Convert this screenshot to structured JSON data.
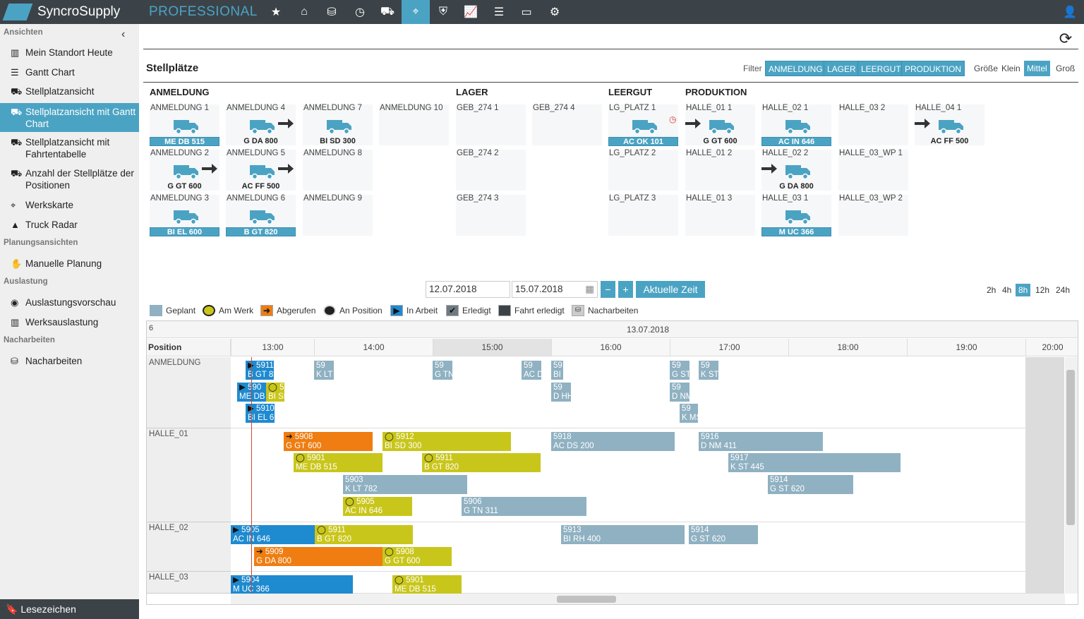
{
  "app": {
    "brand": "SyncroSupply",
    "edition": "PROFESSIONAL"
  },
  "nav_icons": [
    "star-icon",
    "home-icon",
    "network-icon",
    "clock-icon",
    "truck-icon",
    "map-marker-icon",
    "shield-icon",
    "chart-line-icon",
    "database-icon",
    "monitor-icon",
    "gears-icon"
  ],
  "sidebar": {
    "section_views": "Ansichten",
    "items": [
      {
        "label": "Mein Standort Heute",
        "icon": "bar-chart-icon"
      },
      {
        "label": "Gantt Chart",
        "icon": "tasks-icon"
      },
      {
        "label": "Stellplatzansicht",
        "icon": "truck-icon"
      },
      {
        "label": "Stellplatzansicht mit Gantt Chart",
        "icon": "truck-icon"
      },
      {
        "label": "Stellplatzansicht mit Fahrtentabelle",
        "icon": "truck-icon"
      },
      {
        "label": "Anzahl der Stellplätze der Positionen",
        "icon": "truck-icon"
      },
      {
        "label": "Werkskarte",
        "icon": "map-marker-icon"
      },
      {
        "label": "Truck Radar",
        "icon": "road-icon"
      }
    ],
    "section_planning": "Planungsansichten",
    "planning_items": [
      {
        "label": "Manuelle Planung",
        "icon": "hand-icon"
      }
    ],
    "section_load": "Auslastung",
    "load_items": [
      {
        "label": "Auslastungsvorschau",
        "icon": "eye-icon"
      },
      {
        "label": "Werksauslastung",
        "icon": "bar-chart-icon"
      }
    ],
    "section_rework": "Nacharbeiten",
    "rework_items": [
      {
        "label": "Nacharbeiten",
        "icon": "cubes-icon"
      }
    ],
    "bookmark": "Lesezeichen"
  },
  "page": {
    "title": "Stellplätze"
  },
  "toolbar": {
    "filter_label": "Filter",
    "filters": [
      "ANMELDUNG",
      "LAGER",
      "LEERGUT",
      "PRODUKTION"
    ],
    "size_label": "Größe",
    "sizes": [
      "Klein",
      "Mittel",
      "Groß"
    ],
    "size_selected": "Mittel"
  },
  "columns": {
    "anmeldung": "ANMELDUNG",
    "lager": "LAGER",
    "leergut": "LEERGUT",
    "produktion": "PRODUKTION"
  },
  "slots": {
    "anm1": {
      "name": "ANMELDUNG 1",
      "plate": "ME DB 515"
    },
    "anm2": {
      "name": "ANMELDUNG 2",
      "plate": "G GT 600"
    },
    "anm3": {
      "name": "ANMELDUNG 3",
      "plate": "BI EL 600"
    },
    "anm4": {
      "name": "ANMELDUNG 4",
      "plate": "G DA 800"
    },
    "anm5": {
      "name": "ANMELDUNG 5",
      "plate": "AC FF 500"
    },
    "anm6": {
      "name": "ANMELDUNG 6",
      "plate": "B GT 820"
    },
    "anm7": {
      "name": "ANMELDUNG 7",
      "plate": "BI SD 300"
    },
    "anm8": {
      "name": "ANMELDUNG 8"
    },
    "anm9": {
      "name": "ANMELDUNG 9"
    },
    "anm10": {
      "name": "ANMELDUNG 10"
    },
    "geb1": {
      "name": "GEB_274 1"
    },
    "geb2": {
      "name": "GEB_274 2"
    },
    "geb3": {
      "name": "GEB_274 3"
    },
    "geb4": {
      "name": "GEB_274 4"
    },
    "lg1": {
      "name": "LG_PLATZ 1",
      "plate": "AC OK 101"
    },
    "lg2": {
      "name": "LG_PLATZ 2"
    },
    "lg3": {
      "name": "LG_PLATZ 3"
    },
    "h011": {
      "name": "HALLE_01 1",
      "plate": "G GT 600"
    },
    "h012": {
      "name": "HALLE_01 2"
    },
    "h013": {
      "name": "HALLE_01 3"
    },
    "h021": {
      "name": "HALLE_02 1",
      "plate": "AC IN 646"
    },
    "h022": {
      "name": "HALLE_02 2",
      "plate": "G DA 800"
    },
    "h031": {
      "name": "HALLE_03 1",
      "plate": "M UC 366"
    },
    "h032": {
      "name": "HALLE_03 2"
    },
    "h03wp1": {
      "name": "HALLE_03_WP 1"
    },
    "h03wp2": {
      "name": "HALLE_03_WP 2"
    },
    "h041": {
      "name": "HALLE_04 1",
      "plate": "AC FF 500"
    }
  },
  "controls": {
    "date_from": "12.07.2018",
    "date_to": "15.07.2018",
    "minus": "−",
    "plus": "+",
    "now": "Aktuelle Zeit",
    "zooms": [
      "2h",
      "4h",
      "8h",
      "12h",
      "24h"
    ],
    "zoom_selected": "8h"
  },
  "legend": [
    "Geplant",
    "Am Werk",
    "Abgerufen",
    "An Position",
    "In Arbeit",
    "Erledigt",
    "Fahrt erledigt",
    "Nacharbeiten"
  ],
  "gantt": {
    "count": "6",
    "date": "13.07.2018",
    "position_header": "Position",
    "hours": [
      "13:00",
      "14:00",
      "15:00",
      "16:00",
      "17:00",
      "18:00",
      "19:00",
      "20:00"
    ],
    "rows": [
      "ANMELDUNG",
      "HALLE_01",
      "HALLE_02",
      "HALLE_03"
    ],
    "bars": {
      "a1": "5911\nB GT 82",
      "a2": "59\nK LT",
      "a3": "59\nG TN",
      "a4": "59\nAC D",
      "a5": "59\nBI RH",
      "a6": "59\nG ST",
      "a7": "59\nK ST",
      "a8": "590\nME DB",
      "a9": "59\nBI SD",
      "a10": "59\nD HH",
      "a11": "59\nD NM",
      "a12": "5910\nBI EL 6",
      "a13": "59\nK MS",
      "h1": "5908\nG GT 600",
      "h2": "5912\nBI SD 300",
      "h3": "5918\nAC DS 200",
      "h4": "5916\nD NM 411",
      "h5": "5901\nME DB 515",
      "h6": "5911\nB GT 820",
      "h7": "5917\nK ST 445",
      "h8": "5903\nK LT 782",
      "h9": "5914\nG ST 620",
      "h10": "5905\nAC IN 646",
      "h11": "5906\nG TN 311",
      "b1": "5905\nAC IN 646",
      "b2": "5911\nB GT 820",
      "b3": "5913\nBI RH 400",
      "b4": "5914\nG ST 620",
      "b5": "5909\nG DA 800",
      "b6": "5908\nG GT 600",
      "c1": "5904\nM UC 366",
      "c2": "5901\nME DB 515"
    }
  },
  "colors": {
    "accent": "#4ba3c3",
    "topbar": "#3c4348",
    "planned": "#8fb1c2",
    "orange": "#ef7d11",
    "yellow": "#c9c61b",
    "blue": "#1e8ad0"
  }
}
